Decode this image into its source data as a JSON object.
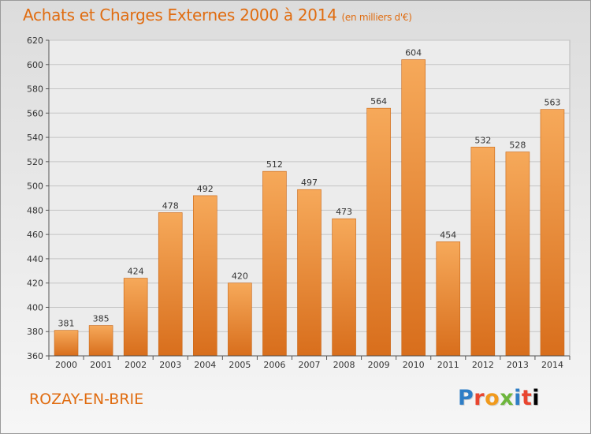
{
  "title": "Achats et Charges Externes 2000 à 2014",
  "subtitle": "(en milliers d'€)",
  "commune": "ROZAY-EN-BRIE",
  "brand": {
    "letters": [
      "P",
      "r",
      "o",
      "x",
      "i",
      "t",
      "i"
    ]
  },
  "colors": {
    "accent": "#e06c10",
    "bar_top": "#f6a95a",
    "bar_bottom": "#d86e1c",
    "grid": "#c4c4c4",
    "axis": "#555555"
  },
  "chart_data": {
    "type": "bar",
    "categories": [
      "2000",
      "2001",
      "2002",
      "2003",
      "2004",
      "2005",
      "2006",
      "2007",
      "2008",
      "2009",
      "2010",
      "2011",
      "2012",
      "2013",
      "2014"
    ],
    "values": [
      381,
      385,
      424,
      478,
      492,
      420,
      512,
      497,
      473,
      564,
      604,
      454,
      532,
      528,
      563
    ],
    "data_labels": [
      "381",
      "385",
      "424",
      "478",
      "492",
      "420",
      "512",
      "497",
      "473",
      "564",
      "604",
      "454",
      "532",
      "528",
      "563"
    ],
    "ylim": [
      360,
      620
    ],
    "yticks": [
      360,
      380,
      400,
      420,
      440,
      460,
      480,
      500,
      520,
      540,
      560,
      580,
      600,
      620
    ],
    "grid": true,
    "xlabel": "",
    "ylabel": ""
  }
}
